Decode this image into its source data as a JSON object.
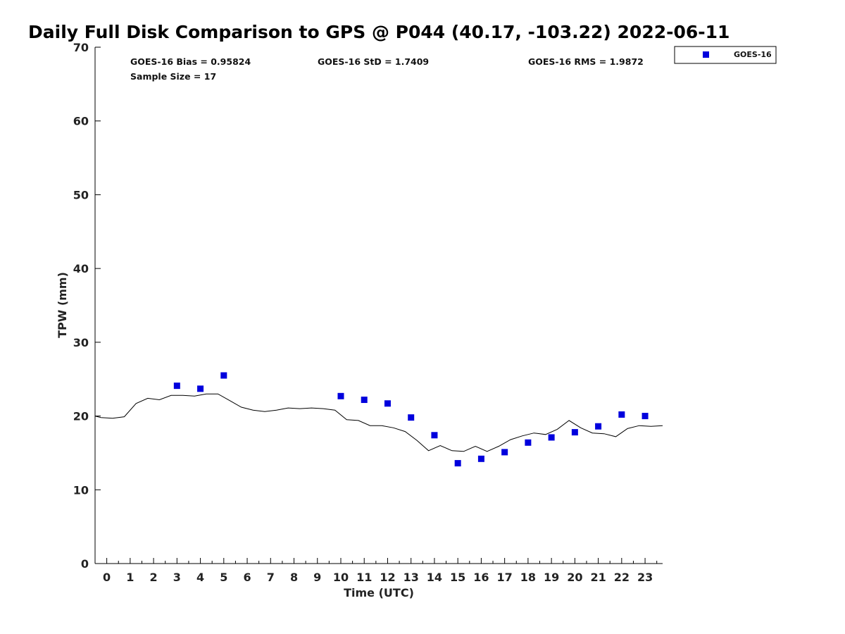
{
  "chart_data": {
    "type": "scatter",
    "title": "Daily Full Disk Comparison to GPS @ P044 (40.17, -103.22) 2022-06-11",
    "xlabel": "Time (UTC)",
    "ylabel": "TPW (mm)",
    "xlim": [
      -0.5,
      23.75
    ],
    "ylim": [
      0,
      70
    ],
    "x_ticks": [
      0,
      1,
      2,
      3,
      4,
      5,
      6,
      7,
      8,
      9,
      10,
      11,
      12,
      13,
      14,
      15,
      16,
      17,
      18,
      19,
      20,
      21,
      22,
      23
    ],
    "y_ticks": [
      0,
      10,
      20,
      30,
      40,
      50,
      60,
      70
    ],
    "grid": false,
    "legend": {
      "placement": "top-right-outside",
      "entries": [
        "GOES-16"
      ]
    },
    "colors": {
      "goes16": "#0000dd",
      "gps_line": "#000000"
    },
    "stats": {
      "bias": "GOES-16 Bias = 0.95824",
      "std": "GOES-16 StD = 1.7409",
      "rms": "GOES-16 RMS = 1.9872",
      "sample_size": "Sample Size = 17"
    },
    "series": [
      {
        "name": "GOES-16",
        "kind": "scatter",
        "x": [
          3,
          4,
          5,
          10,
          11,
          12,
          13,
          14,
          15,
          16,
          17,
          18,
          19,
          20,
          21,
          22,
          23
        ],
        "y": [
          24.1,
          23.7,
          25.5,
          22.7,
          22.2,
          21.7,
          19.8,
          17.4,
          13.6,
          14.2,
          15.1,
          16.4,
          17.1,
          17.8,
          18.6,
          20.2,
          20.0
        ]
      },
      {
        "kind": "line",
        "x": [
          -0.5,
          -0.25,
          0.25,
          0.75,
          1.25,
          1.75,
          2.25,
          2.75,
          3.25,
          3.75,
          4.25,
          4.75,
          5.25,
          5.75,
          6.25,
          6.75,
          7.25,
          7.75,
          8.25,
          8.75,
          9.25,
          9.75,
          10.25,
          10.75,
          11.25,
          11.75,
          12.25,
          12.75,
          13.25,
          13.75,
          14.25,
          14.75,
          15.25,
          15.75,
          16.25,
          16.75,
          17.25,
          17.75,
          18.25,
          18.75,
          19.25,
          19.75,
          20.25,
          20.75,
          21.25,
          21.75,
          22.25,
          22.75,
          23.25,
          23.75
        ],
        "y": [
          20.0,
          19.8,
          19.7,
          19.9,
          21.7,
          22.4,
          22.2,
          22.8,
          22.8,
          22.7,
          23.0,
          23.0,
          22.1,
          21.2,
          20.8,
          20.6,
          20.8,
          21.1,
          21.0,
          21.1,
          21.0,
          20.8,
          19.5,
          19.4,
          18.7,
          18.7,
          18.4,
          17.9,
          16.7,
          15.3,
          16.0,
          15.3,
          15.2,
          15.9,
          15.2,
          15.9,
          16.8,
          17.3,
          17.7,
          17.5,
          18.2,
          19.4,
          18.4,
          17.7,
          17.6,
          17.2,
          18.3,
          18.7,
          18.6,
          18.7
        ]
      }
    ]
  }
}
